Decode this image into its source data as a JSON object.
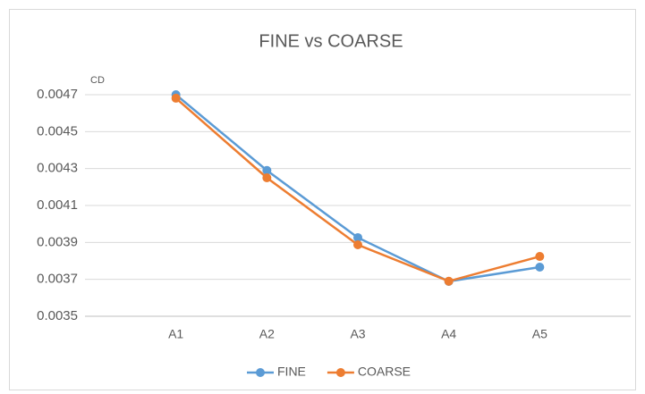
{
  "chart_data": {
    "type": "line",
    "title": "FINE vs COARSE",
    "y_label": "CD",
    "categories": [
      "A1",
      "A2",
      "A3",
      "A4",
      "A5"
    ],
    "series": [
      {
        "name": "FINE",
        "color": "#5b9bd5",
        "values": [
          0.0047,
          0.00429,
          0.003926,
          0.003689,
          0.003766
        ]
      },
      {
        "name": "COARSE",
        "color": "#ed7d31",
        "values": [
          0.004681,
          0.00425,
          0.003887,
          0.00369,
          0.003824
        ]
      }
    ],
    "ylim": [
      0.0035,
      0.0047
    ],
    "yticks": [
      0.0035,
      0.0037,
      0.0039,
      0.0041,
      0.0043,
      0.0045,
      0.0047
    ],
    "grid": true,
    "legend": "bottom"
  }
}
